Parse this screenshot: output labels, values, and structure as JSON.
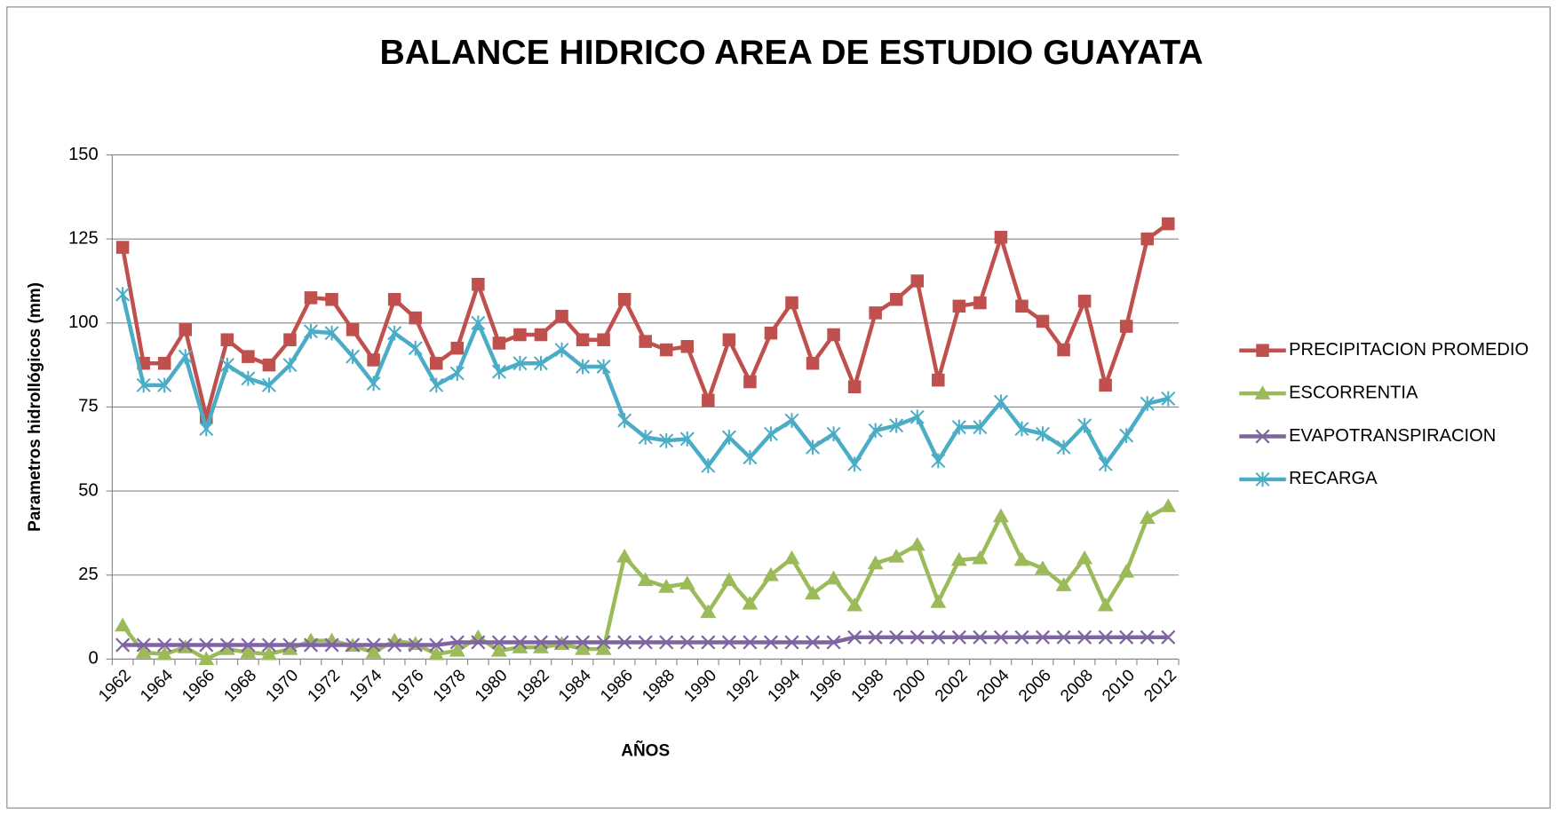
{
  "chart_data": {
    "type": "line",
    "title": "BALANCE HIDRICO AREA DE ESTUDIO GUAYATA",
    "x_label": "AÑOS",
    "y_label": "Parametros hidrollógicos (mm)",
    "categories": [
      "1962",
      null,
      "1964",
      null,
      "1966",
      null,
      "1968",
      null,
      "1970",
      null,
      "1972",
      null,
      "1974",
      null,
      "1976",
      null,
      "1978",
      null,
      "1980",
      null,
      "1982",
      null,
      "1984",
      null,
      "1986",
      null,
      "1988",
      null,
      "1990",
      null,
      "1992",
      null,
      "1994",
      null,
      "1996",
      null,
      "1998",
      null,
      "2000",
      null,
      "2002",
      null,
      "2004",
      null,
      "2006",
      null,
      "2008",
      null,
      "2010",
      null,
      "2012"
    ],
    "ylim": [
      0,
      150
    ],
    "yticks": [
      0,
      25,
      50,
      75,
      100,
      125,
      150
    ],
    "grid": true,
    "legend": "right",
    "series": [
      {
        "name": "PRECIPITACION PROMEDIO",
        "color": "#C0504D",
        "marker": "square",
        "values": [
          122.5,
          88,
          88,
          98,
          72,
          95,
          90,
          87.5,
          95,
          107.5,
          107,
          98,
          89,
          107,
          101.5,
          88,
          92.5,
          111.5,
          94,
          96.5,
          96.5,
          102,
          95,
          95,
          107,
          94.5,
          92,
          93,
          77,
          95,
          82.5,
          97,
          106,
          88,
          96.5,
          81,
          103,
          107,
          112.5,
          83,
          105,
          106,
          125.5,
          105,
          100.5,
          92,
          106.5,
          81.5,
          99,
          125,
          129.5
        ]
      },
      {
        "name": "ESCORRENTIA",
        "color": "#9BBB59",
        "marker": "triangle",
        "values": [
          10,
          2,
          1.5,
          3.5,
          0,
          3,
          2,
          1.5,
          3,
          5.5,
          5.5,
          4,
          2,
          5.5,
          4.5,
          1.5,
          2.5,
          6.5,
          2.5,
          3.5,
          3.5,
          4.5,
          3,
          3,
          30.5,
          23.5,
          21.5,
          22.5,
          14,
          23.5,
          16.5,
          25,
          30,
          19.5,
          24,
          16,
          28.5,
          30.5,
          34,
          17,
          29.5,
          30,
          42.5,
          29.5,
          27,
          22,
          30,
          16,
          26,
          42,
          45.5
        ]
      },
      {
        "name": "EVAPOTRANSPIRACION",
        "color": "#8064A2",
        "marker": "x",
        "values": [
          4.2,
          4.2,
          4.2,
          4.2,
          4.2,
          4.2,
          4.2,
          4.2,
          4.2,
          4.2,
          4.2,
          4.2,
          4.2,
          4.2,
          4.2,
          4.2,
          5,
          5,
          5,
          5,
          5,
          5,
          5,
          5,
          5,
          5,
          5,
          5,
          5,
          5,
          5,
          5,
          5,
          5,
          5,
          6.5,
          6.5,
          6.5,
          6.5,
          6.5,
          6.5,
          6.5,
          6.5,
          6.5,
          6.5,
          6.5,
          6.5,
          6.5,
          6.5,
          6.5,
          6.5
        ]
      },
      {
        "name": "RECARGA",
        "color": "#4BACC6",
        "marker": "star",
        "values": [
          108.5,
          81.5,
          81.5,
          90,
          68.5,
          87.5,
          83.5,
          81.5,
          87.5,
          97.5,
          97,
          90,
          82,
          97,
          92.5,
          81.5,
          85,
          100,
          85.5,
          88,
          88,
          92,
          87,
          87,
          71,
          66,
          65,
          65.5,
          57.5,
          66,
          60,
          67,
          71,
          63,
          67,
          58,
          68,
          69.5,
          72,
          59,
          69,
          69,
          76.5,
          68.5,
          67,
          63,
          69.5,
          58,
          66.5,
          76,
          77.5
        ]
      }
    ]
  }
}
